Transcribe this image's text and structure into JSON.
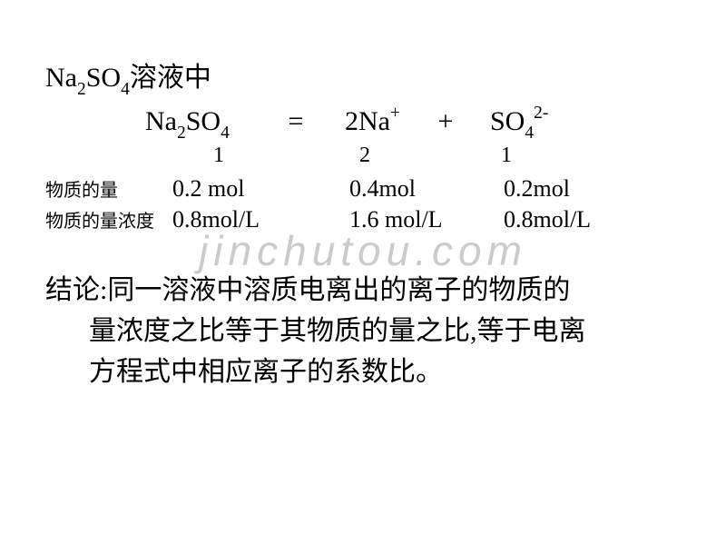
{
  "title_line": {
    "compound_html": "Na<sub>2</sub>SO<sub>4</sub>溶液中"
  },
  "equation": {
    "lhs": "Na<sub>2</sub>SO<sub>4</sub>",
    "eq": "=",
    "rhs1": "2Na<sup>+</sup>",
    "plus": "+",
    "rhs2": "SO<sub>4</sub><sup>2-</sup>"
  },
  "ratio": {
    "v1": "1",
    "v2": "2",
    "v3": "1"
  },
  "rows": {
    "mol": {
      "label": "物质的量",
      "v1": "0.2 mol",
      "v2": "0.4mol",
      "v3": "0.2mol"
    },
    "conc": {
      "label": "物质的量浓度",
      "v1": "0.8mol/L",
      "v2": "1.6  mol/L",
      "v3": "0.8mol/L"
    }
  },
  "conclusion": {
    "line1": "结论:同一溶液中溶质电离出的离子的物质的",
    "line2": "量浓度之比等于其物质的量之比,等于电离",
    "line3": "方程式中相应离子的系数比。"
  },
  "watermark": "jinchutou.com",
  "colors": {
    "text": "#000000",
    "background": "#ffffff",
    "watermark": "rgba(140,140,140,0.45)"
  },
  "fonts": {
    "body": "SimSun",
    "title_size": 30,
    "label_size": 20,
    "data_size": 26,
    "conclusion_size": 30
  }
}
